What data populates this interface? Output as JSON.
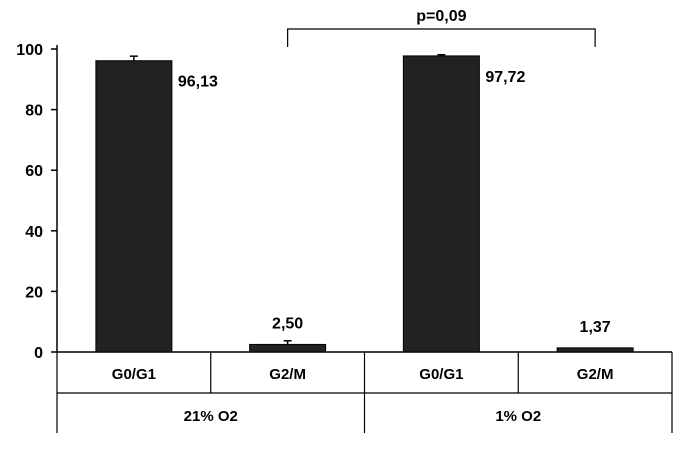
{
  "chart_data": {
    "type": "bar",
    "categories": [
      "G0/G1",
      "G2/M",
      "G0/G1",
      "G2/M"
    ],
    "groups": [
      {
        "label": "21% O2",
        "categories": [
          "G0/G1",
          "G2/M"
        ]
      },
      {
        "label": "1% O2",
        "categories": [
          "G0/G1",
          "G2/M"
        ]
      }
    ],
    "values": [
      96.13,
      2.5,
      97.72,
      1.37
    ],
    "data_labels": [
      "96,13",
      "2,50",
      "97,72",
      "1,37"
    ],
    "error_bars": [
      1.5,
      1.2,
      0.4,
      0
    ],
    "ylim": [
      0,
      100
    ],
    "yticks": [
      0,
      20,
      40,
      60,
      80,
      100
    ],
    "ytick_labels": [
      "0",
      "20",
      "40",
      "60",
      "80",
      "100"
    ],
    "grid": false,
    "annotation": {
      "text": "p=0,09",
      "from_bar": 1,
      "to_bar": 3
    },
    "bar_color": "#222222"
  }
}
